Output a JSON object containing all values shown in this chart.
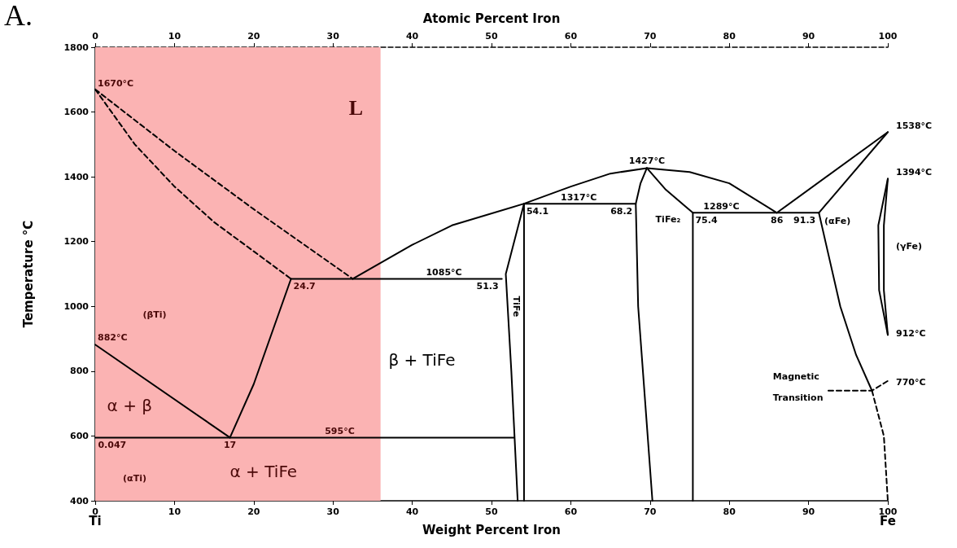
{
  "chart_data": {
    "type": "line",
    "title": "A.",
    "xlabel": "Weight Percent Iron",
    "x2label": "Atomic Percent Iron",
    "ylabel": "Temperature °C",
    "xlim": [
      0,
      100
    ],
    "xticks": [
      0,
      10,
      20,
      30,
      40,
      50,
      60,
      70,
      80,
      90,
      100
    ],
    "x2lim": [
      0,
      100
    ],
    "x2ticks": [
      0,
      10,
      20,
      30,
      40,
      50,
      60,
      70,
      80,
      90,
      100
    ],
    "ylim": [
      400,
      1800
    ],
    "yticks": [
      400,
      600,
      800,
      1000,
      1200,
      1400,
      1600,
      1800
    ],
    "grid": false,
    "marker": "none",
    "bands": [
      {
        "axis": "x",
        "from": 0,
        "to": 36,
        "color": "#fbb3b3"
      }
    ],
    "series": [
      {
        "color": "#000000",
        "line_style": "dashed",
        "x": [
          0,
          10,
          20,
          32.5
        ],
        "values": [
          1670,
          1480,
          1300,
          1085
        ]
      },
      {
        "color": "#000000",
        "line_style": "dashed",
        "x": [
          0,
          5,
          10,
          15,
          20,
          24.7
        ],
        "values": [
          1670,
          1500,
          1370,
          1260,
          1170,
          1085
        ]
      },
      {
        "color": "#000000",
        "line_style": "solid",
        "x": [
          32.5,
          40,
          45,
          54.1,
          60,
          65,
          69.6,
          75,
          80,
          86
        ],
        "values": [
          1085,
          1190,
          1250,
          1317,
          1370,
          1410,
          1427,
          1415,
          1380,
          1289
        ]
      },
      {
        "color": "#000000",
        "line_style": "solid",
        "x": [
          86,
          100
        ],
        "values": [
          1289,
          1538
        ]
      },
      {
        "color": "#000000",
        "line_style": "solid",
        "x": [
          24.7,
          51.3
        ],
        "values": [
          1085,
          1085
        ]
      },
      {
        "color": "#000000",
        "line_style": "solid",
        "x": [
          54.1,
          51.8,
          52.5,
          53.3
        ],
        "values": [
          1317,
          1100,
          800,
          400
        ]
      },
      {
        "color": "#000000",
        "line_style": "solid",
        "x": [
          54.1,
          54.1
        ],
        "values": [
          1317,
          400
        ]
      },
      {
        "color": "#000000",
        "line_style": "solid",
        "x": [
          54.1,
          68.2
        ],
        "values": [
          1317,
          1317
        ]
      },
      {
        "color": "#000000",
        "line_style": "solid",
        "x": [
          69.6,
          68.8,
          68.2,
          68.5,
          70.3
        ],
        "values": [
          1427,
          1380,
          1317,
          1000,
          400
        ]
      },
      {
        "color": "#000000",
        "line_style": "solid",
        "x": [
          69.6,
          72,
          75.4
        ],
        "values": [
          1427,
          1360,
          1289
        ]
      },
      {
        "color": "#000000",
        "line_style": "solid",
        "x": [
          75.4,
          91.3
        ],
        "values": [
          1289,
          1289
        ]
      },
      {
        "color": "#000000",
        "line_style": "solid",
        "x": [
          75.4,
          75.4
        ],
        "values": [
          1289,
          400
        ]
      },
      {
        "color": "#000000",
        "line_style": "solid",
        "x": [
          91.3,
          100
        ],
        "values": [
          1289,
          1538
        ]
      },
      {
        "color": "#000000",
        "line_style": "solid",
        "x": [
          91.3,
          94,
          96,
          98
        ],
        "values": [
          1289,
          1000,
          850,
          740
        ]
      },
      {
        "color": "#000000",
        "line_style": "solid",
        "x": [
          100,
          98.8,
          98.9,
          100
        ],
        "values": [
          1394,
          1250,
          1050,
          912
        ]
      },
      {
        "color": "#000000",
        "line_style": "solid",
        "x": [
          100,
          99.5,
          99.5,
          100
        ],
        "values": [
          1394,
          1250,
          1050,
          912
        ]
      },
      {
        "color": "#000000",
        "line_style": "dashed",
        "x": [
          92.5,
          98,
          100
        ],
        "values": [
          740,
          740,
          770
        ]
      },
      {
        "color": "#000000",
        "line_style": "dashed",
        "x": [
          98,
          99.5,
          100
        ],
        "values": [
          740,
          600,
          400
        ]
      },
      {
        "color": "#000000",
        "line_style": "solid",
        "x": [
          0,
          52.8
        ],
        "values": [
          595,
          595
        ]
      },
      {
        "color": "#000000",
        "line_style": "solid",
        "x": [
          0,
          17
        ],
        "values": [
          882,
          595
        ]
      },
      {
        "color": "#000000",
        "line_style": "solid",
        "x": [
          17,
          20,
          24.7
        ],
        "values": [
          595,
          760,
          1085
        ]
      }
    ],
    "annotations": [
      "L",
      {
        "text": "1670°C",
        "x": 0,
        "y": 1670
      },
      "(βTi)",
      {
        "text": "882°C",
        "x": 0,
        "y": 882
      },
      "α + β",
      {
        "text": "0.047",
        "x": 0.047,
        "y": 595
      },
      {
        "text": "17",
        "x": 17,
        "y": 595
      },
      {
        "text": "595°C",
        "x": 30,
        "y": 595
      },
      "α + TiFe",
      "β + TiFe",
      {
        "text": "24.7",
        "x": 24.7,
        "y": 1085
      },
      {
        "text": "1085°C",
        "x": 44,
        "y": 1085
      },
      {
        "text": "51.3",
        "x": 51.3,
        "y": 1085
      },
      "TiFe",
      {
        "text": "54.1",
        "x": 54.1,
        "y": 1317
      },
      {
        "text": "1317°C",
        "x": 61,
        "y": 1317
      },
      {
        "text": "68.2",
        "x": 68.2,
        "y": 1317
      },
      {
        "text": "1427°C",
        "x": 69.6,
        "y": 1427
      },
      "TiFe₂",
      {
        "text": "75.4",
        "x": 75.4,
        "y": 1289
      },
      {
        "text": "1289°C",
        "x": 79,
        "y": 1289
      },
      {
        "text": "86",
        "x": 86,
        "y": 1289
      },
      {
        "text": "91.3",
        "x": 91.3,
        "y": 1289
      },
      "(αFe)",
      "(γFe)",
      {
        "text": "1538°C",
        "x": 100,
        "y": 1538
      },
      {
        "text": "1394°C",
        "x": 100,
        "y": 1394
      },
      {
        "text": "912°C",
        "x": 100,
        "y": 912
      },
      {
        "text": "770°C",
        "x": 100,
        "y": 770
      },
      "Magnetic",
      "Transition",
      "(αTi)",
      "Ti",
      "Fe"
    ]
  }
}
